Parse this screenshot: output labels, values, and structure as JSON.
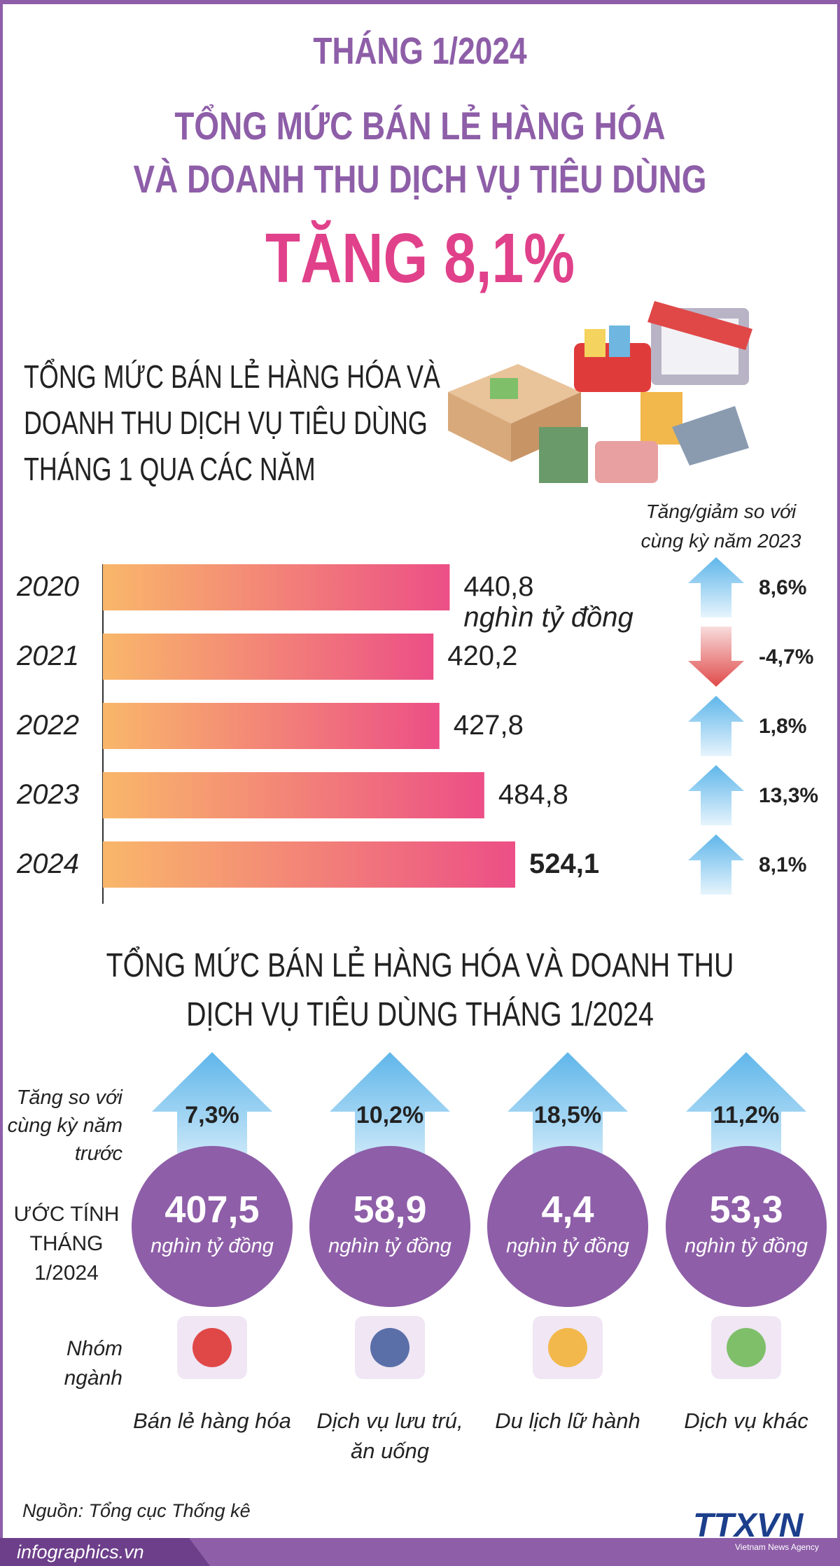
{
  "header": {
    "period": "THÁNG 1/2024",
    "title_lines": [
      "TỔNG MỨC BÁN LẺ HÀNG HÓA",
      "VÀ DOANH THU DỊCH VỤ TIÊU DÙNG"
    ],
    "highlight": "TĂNG 8,1%"
  },
  "chart_data": {
    "type": "bar",
    "orientation": "horizontal",
    "title_lines": [
      "TỔNG MỨC BÁN LẺ HÀNG HÓA VÀ",
      "DOANH THU DỊCH VỤ TIÊU DÙNG",
      "THÁNG 1 QUA CÁC NĂM"
    ],
    "categories": [
      "2020",
      "2021",
      "2022",
      "2023",
      "2024"
    ],
    "values": [
      440.8,
      420.2,
      427.8,
      484.8,
      524.1
    ],
    "value_labels": [
      "440,8",
      "420,2",
      "427,8",
      "484,8",
      "524,1"
    ],
    "unit": "nghìn tỷ đồng",
    "colors": [
      "#f9b76a",
      "#ec4f86"
    ],
    "change": {
      "title": "Tăng/giảm so với cùng kỳ năm 2023",
      "values": [
        8.6,
        -4.7,
        1.8,
        13.3,
        8.1
      ],
      "value_labels": [
        "8,6%",
        "-4,7%",
        "1,8%",
        "13,3%",
        "8,1%"
      ],
      "up_color": "#5fb6ea",
      "down_color": "#e04a4a"
    }
  },
  "breakdown": {
    "title_lines": [
      "TỔNG MỨC BÁN LẺ HÀNG HÓA VÀ DOANH THU",
      "DỊCH VỤ TIÊU DÙNG THÁNG 1/2024"
    ],
    "row_labels": {
      "growth": "Tăng so với cùng kỳ năm trước",
      "estimate": "ƯỚC TÍNH THÁNG 1/2024",
      "group": "Nhóm ngành"
    },
    "unit": "nghìn tỷ đồng",
    "groups": [
      {
        "name": "Bán lẻ hàng hóa",
        "growth": 7.3,
        "growth_label": "7,3%",
        "estimate": 407.5,
        "estimate_label": "407,5"
      },
      {
        "name": "Dịch vụ lưu trú, ăn uống",
        "growth": 10.2,
        "growth_label": "10,2%",
        "estimate": 58.9,
        "estimate_label": "58,9"
      },
      {
        "name": "Du lịch lữ hành",
        "growth": 18.5,
        "growth_label": "18,5%",
        "estimate": 4.4,
        "estimate_label": "4,4"
      },
      {
        "name": "Dịch vụ khác",
        "growth": 11.2,
        "growth_label": "11,2%",
        "estimate": 53.3,
        "estimate_label": "53,3"
      }
    ]
  },
  "footer": {
    "source": "Nguồn: Tổng cục Thống kê",
    "site": "infographics.vn",
    "logo": "TTXVN",
    "logo_sub": "Vietnam News Agency"
  }
}
